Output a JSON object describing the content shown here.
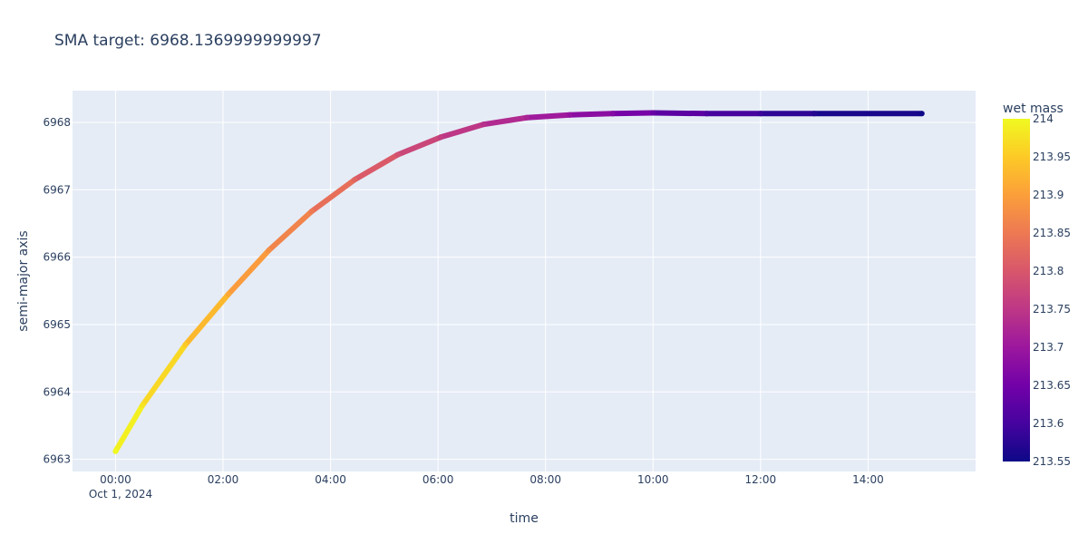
{
  "chart_data": {
    "type": "scatter",
    "title": "SMA target: 6968.1369999999997",
    "xlabel": "time",
    "ylabel": "semi-major axis",
    "x_unit": "hours",
    "x_start_label": "Oct 1, 2024",
    "x_ticks": [
      "00:00",
      "02:00",
      "04:00",
      "06:00",
      "08:00",
      "10:00",
      "12:00",
      "14:00"
    ],
    "x_tick_values": [
      0,
      2,
      4,
      6,
      8,
      10,
      12,
      14
    ],
    "xlim": [
      -0.8,
      16
    ],
    "y_ticks": [
      "6963",
      "6964",
      "6965",
      "6966",
      "6967",
      "6968"
    ],
    "y_tick_values": [
      6963,
      6964,
      6965,
      6966,
      6967,
      6968
    ],
    "ylim": [
      6962.82,
      6968.47
    ],
    "grid": true,
    "plot_background": "#e5ecf6",
    "series": [
      {
        "x": [
          0,
          0.5,
          1.3,
          2.1,
          2.85,
          3.65,
          4.45,
          5.25,
          6.05,
          6.85,
          7.65,
          8.45,
          9.25,
          10,
          11,
          12,
          13,
          15
        ],
        "y": [
          6963.12,
          6963.8,
          6964.7,
          6965.45,
          6966.1,
          6966.68,
          6967.15,
          6967.52,
          6967.78,
          6967.97,
          6968.07,
          6968.11,
          6968.13,
          6968.14,
          6968.13,
          6968.13,
          6968.13,
          6968.13
        ],
        "wet_mass": [
          214.0,
          213.98,
          213.95,
          213.91,
          213.88,
          213.85,
          213.82,
          213.79,
          213.76,
          213.74,
          213.72,
          213.69,
          213.67,
          213.64,
          213.61,
          213.59,
          213.57,
          213.55
        ]
      }
    ],
    "colorbar": {
      "title": "wet mass",
      "min": 213.55,
      "max": 214,
      "ticks": [
        "214",
        "213.95",
        "213.9",
        "213.85",
        "213.8",
        "213.75",
        "213.7",
        "213.65",
        "213.6",
        "213.55"
      ],
      "tick_values": [
        214,
        213.95,
        213.9,
        213.85,
        213.8,
        213.75,
        213.7,
        213.65,
        213.6,
        213.55
      ],
      "colorscale": "plasma"
    }
  }
}
